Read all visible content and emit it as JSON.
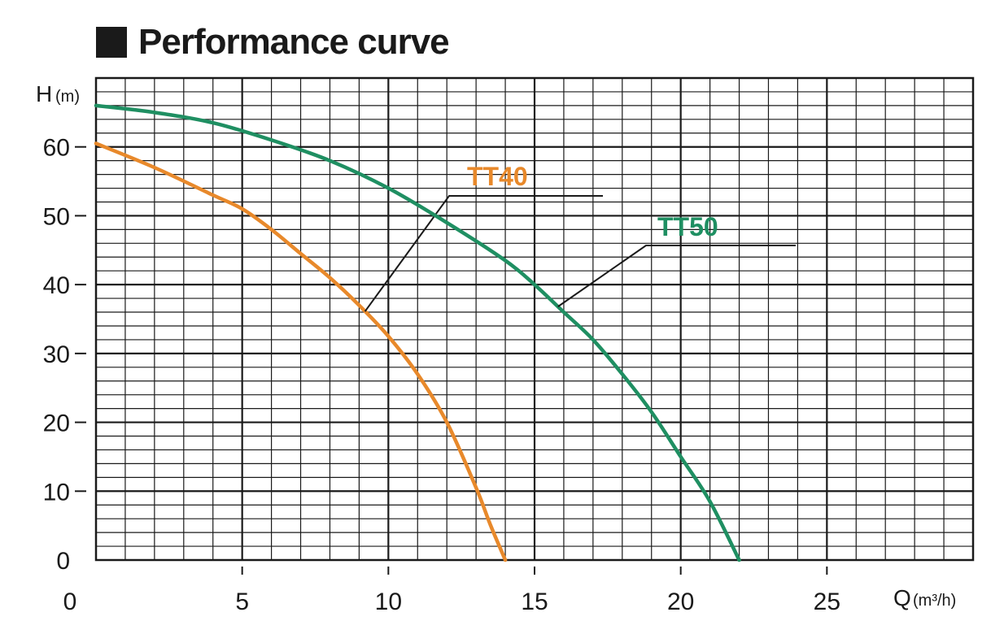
{
  "title": "Performance curve",
  "colors": {
    "TT40": "#e8892b",
    "TT50": "#1f8f62",
    "grid": "#1a1a1a",
    "text": "#1a1a1a"
  },
  "chart_data": {
    "type": "line",
    "title": "Performance curve",
    "ylabel": "H",
    "yunit": "(m)",
    "xlabel": "Q",
    "xunit": "(m³/h)",
    "xlim": [
      0,
      30
    ],
    "ylim": [
      0,
      70
    ],
    "x_ticks": [
      0,
      5,
      10,
      15,
      20,
      25
    ],
    "y_ticks": [
      0,
      10,
      20,
      30,
      40,
      50,
      60
    ],
    "x_tick_labels": [
      "0",
      "5",
      "10",
      "15",
      "20",
      "25"
    ],
    "y_tick_labels": [
      "0",
      "10",
      "20",
      "30",
      "40",
      "50",
      "60"
    ],
    "grid": true,
    "series": [
      {
        "name": "TT40",
        "x": [
          0,
          2,
          4,
          5,
          6,
          7,
          8,
          9,
          10,
          11,
          12,
          13,
          13.5,
          14
        ],
        "y": [
          60.5,
          57,
          53,
          51,
          48,
          44.5,
          41,
          37,
          32.5,
          27,
          20,
          10.5,
          5,
          0
        ]
      },
      {
        "name": "TT50",
        "x": [
          0,
          2,
          4,
          6,
          8,
          10,
          12,
          14,
          15,
          16,
          17,
          18,
          19,
          20,
          21,
          22
        ],
        "y": [
          66,
          65,
          63.5,
          61,
          58,
          54,
          49,
          43.5,
          40,
          36,
          32,
          27,
          21.5,
          15,
          8.5,
          0
        ]
      }
    ]
  }
}
